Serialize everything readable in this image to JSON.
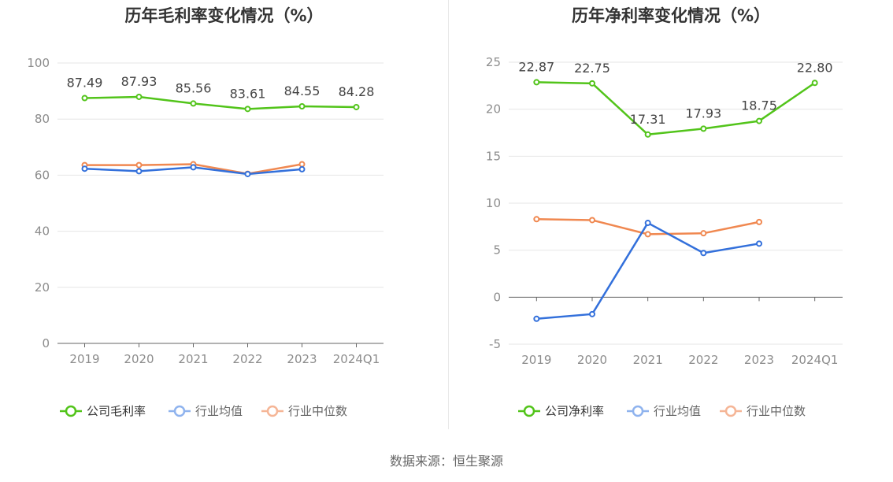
{
  "source": "数据来源：恒生聚源",
  "chart_data": [
    {
      "type": "line",
      "title": "历年毛利率变化情况（%）",
      "categories": [
        "2019",
        "2020",
        "2021",
        "2022",
        "2023",
        "2024Q1"
      ],
      "ylim": [
        0,
        100
      ],
      "yticks": [
        0,
        20,
        40,
        60,
        80,
        100
      ],
      "grid": true,
      "legend_position": "bottom",
      "series": [
        {
          "name": "公司毛利率",
          "color": "#52c41a",
          "labels": true,
          "values": [
            87.49,
            87.93,
            85.56,
            83.61,
            84.55,
            84.28
          ]
        },
        {
          "name": "行业均值",
          "color": "#3370db",
          "labels": false,
          "values": [
            62.3,
            61.4,
            62.8,
            60.4,
            62.1,
            null
          ]
        },
        {
          "name": "行业中位数",
          "color": "#f08850",
          "labels": false,
          "values": [
            63.6,
            63.6,
            63.9,
            60.5,
            63.9,
            null
          ]
        }
      ]
    },
    {
      "type": "line",
      "title": "历年净利率变化情况（%）",
      "categories": [
        "2019",
        "2020",
        "2021",
        "2022",
        "2023",
        "2024Q1"
      ],
      "ylim": [
        -5,
        25
      ],
      "yticks": [
        -5,
        0,
        5,
        10,
        15,
        20,
        25
      ],
      "grid": true,
      "legend_position": "bottom",
      "series": [
        {
          "name": "公司净利率",
          "color": "#52c41a",
          "labels": true,
          "values": [
            22.87,
            22.75,
            17.31,
            17.93,
            18.75,
            22.8
          ]
        },
        {
          "name": "行业均值",
          "color": "#3370db",
          "labels": false,
          "values": [
            -2.3,
            -1.8,
            7.9,
            4.7,
            5.7,
            null
          ]
        },
        {
          "name": "行业中位数",
          "color": "#f08850",
          "labels": false,
          "values": [
            8.3,
            8.2,
            6.7,
            6.8,
            8.0,
            null
          ]
        }
      ]
    }
  ]
}
